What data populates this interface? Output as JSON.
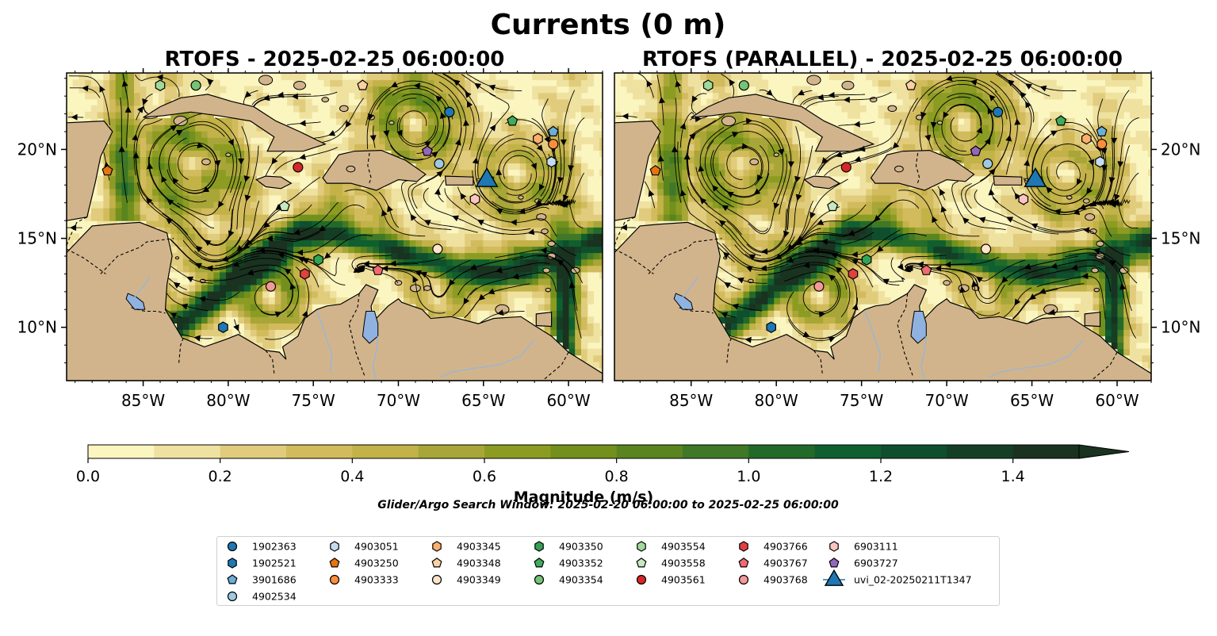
{
  "figure": {
    "title": "Currents (0 m)",
    "search_window": "Glider/Argo Search Window: 2025-02-20 06:00:00 to 2025-02-25 06:00:00"
  },
  "panels": [
    {
      "title": "RTOFS - 2025-02-25 06:00:00"
    },
    {
      "title": "RTOFS (PARALLEL) - 2025-02-25 06:00:00"
    }
  ],
  "map": {
    "lon_range": [
      -89.5,
      -58.0
    ],
    "lat_range": [
      7.0,
      24.3
    ],
    "lon_ticks": [
      "85°W",
      "80°W",
      "75°W",
      "70°W",
      "65°W",
      "60°W"
    ],
    "lat_ticks": [
      "20°N",
      "15°N",
      "10°N"
    ],
    "land_color": "#d2b48c",
    "lake_color": "#8fb2e0",
    "river_color": "#9fb6cc"
  },
  "colorbar": {
    "label": "Magnitude (m/s)",
    "ticks": [
      "0.0",
      "0.2",
      "0.4",
      "0.6",
      "0.8",
      "1.0",
      "1.2",
      "1.4"
    ],
    "range": [
      0,
      1.5
    ],
    "extend": "max",
    "colors": [
      "#fbf5c0",
      "#efe2a0",
      "#e0cc7c",
      "#d2bb5c",
      "#c2b248",
      "#a8a638",
      "#8c9c22",
      "#73901c",
      "#5a8420",
      "#3f7826",
      "#226a2a",
      "#0f5f2f",
      "#0f4f2d",
      "#143f25",
      "#1a3220"
    ]
  },
  "legend": {
    "items": [
      {
        "label": "1902363",
        "marker": "circle",
        "color": "#1f77b4"
      },
      {
        "label": "1902521",
        "marker": "hexagon",
        "color": "#1f77b4"
      },
      {
        "label": "3901686",
        "marker": "pentagon",
        "color": "#6baed6"
      },
      {
        "label": "4902534",
        "marker": "circle",
        "color": "#9ecae1"
      },
      {
        "label": "4903051",
        "marker": "hexagon",
        "color": "#c6dbef"
      },
      {
        "label": "4903250",
        "marker": "pentagon",
        "color": "#e6750f"
      },
      {
        "label": "4903333",
        "marker": "circle",
        "color": "#fd8d3c"
      },
      {
        "label": "4903345",
        "marker": "hexagon",
        "color": "#fdae6b"
      },
      {
        "label": "4903348",
        "marker": "pentagon",
        "color": "#fdd0a2"
      },
      {
        "label": "4903349",
        "marker": "circle",
        "color": "#ffe4c8"
      },
      {
        "label": "4903350",
        "marker": "hexagon",
        "color": "#31a354"
      },
      {
        "label": "4903352",
        "marker": "pentagon",
        "color": "#41ab5d"
      },
      {
        "label": "4903354",
        "marker": "circle",
        "color": "#74c476"
      },
      {
        "label": "4903554",
        "marker": "hexagon",
        "color": "#a1d99b"
      },
      {
        "label": "4903558",
        "marker": "pentagon",
        "color": "#c7e9c0"
      },
      {
        "label": "4903561",
        "marker": "circle",
        "color": "#d62728"
      },
      {
        "label": "4903766",
        "marker": "hexagon",
        "color": "#e0413f"
      },
      {
        "label": "4903767",
        "marker": "pentagon",
        "color": "#f06a70"
      },
      {
        "label": "4903768",
        "marker": "circle",
        "color": "#f4999a"
      },
      {
        "label": "6903111",
        "marker": "hexagon",
        "color": "#fcc5c0"
      },
      {
        "label": "6903727",
        "marker": "pentagon",
        "color": "#9467bd"
      },
      {
        "label": "uvi_02-20250211T1347",
        "marker": "triangle",
        "color": "#1f77b4"
      }
    ]
  },
  "platforms": [
    {
      "id": "1902363",
      "lon": -67.0,
      "lat": 22.1
    },
    {
      "id": "1902521",
      "lon": -80.3,
      "lat": 10.0
    },
    {
      "id": "3901686",
      "lon": -60.9,
      "lat": 21.0
    },
    {
      "id": "4902534",
      "lon": -67.6,
      "lat": 19.2
    },
    {
      "id": "4903051",
      "lon": -61.0,
      "lat": 19.3
    },
    {
      "id": "4903250",
      "lon": -87.1,
      "lat": 18.8
    },
    {
      "id": "4903333",
      "lon": -60.9,
      "lat": 20.3
    },
    {
      "id": "4903345",
      "lon": -61.8,
      "lat": 20.6
    },
    {
      "id": "4903348",
      "lon": -72.1,
      "lat": 23.6
    },
    {
      "id": "4903349",
      "lon": -67.7,
      "lat": 14.4
    },
    {
      "id": "4903350",
      "lon": -74.7,
      "lat": 13.8
    },
    {
      "id": "4903352",
      "lon": -63.3,
      "lat": 21.6
    },
    {
      "id": "4903354",
      "lon": -81.9,
      "lat": 23.6
    },
    {
      "id": "4903554",
      "lon": -84.0,
      "lat": 23.6
    },
    {
      "id": "4903558",
      "lon": -76.7,
      "lat": 16.8
    },
    {
      "id": "4903561",
      "lon": -75.9,
      "lat": 19.0
    },
    {
      "id": "4903766",
      "lon": -75.5,
      "lat": 13.0
    },
    {
      "id": "4903767",
      "lon": -71.2,
      "lat": 13.2
    },
    {
      "id": "4903768",
      "lon": -77.5,
      "lat": 12.3
    },
    {
      "id": "6903111",
      "lon": -65.5,
      "lat": 17.2
    },
    {
      "id": "6903727",
      "lon": -68.3,
      "lat": 19.9
    },
    {
      "id": "uvi_02-20250211T1347",
      "lon": -64.8,
      "lat": 18.3
    }
  ]
}
